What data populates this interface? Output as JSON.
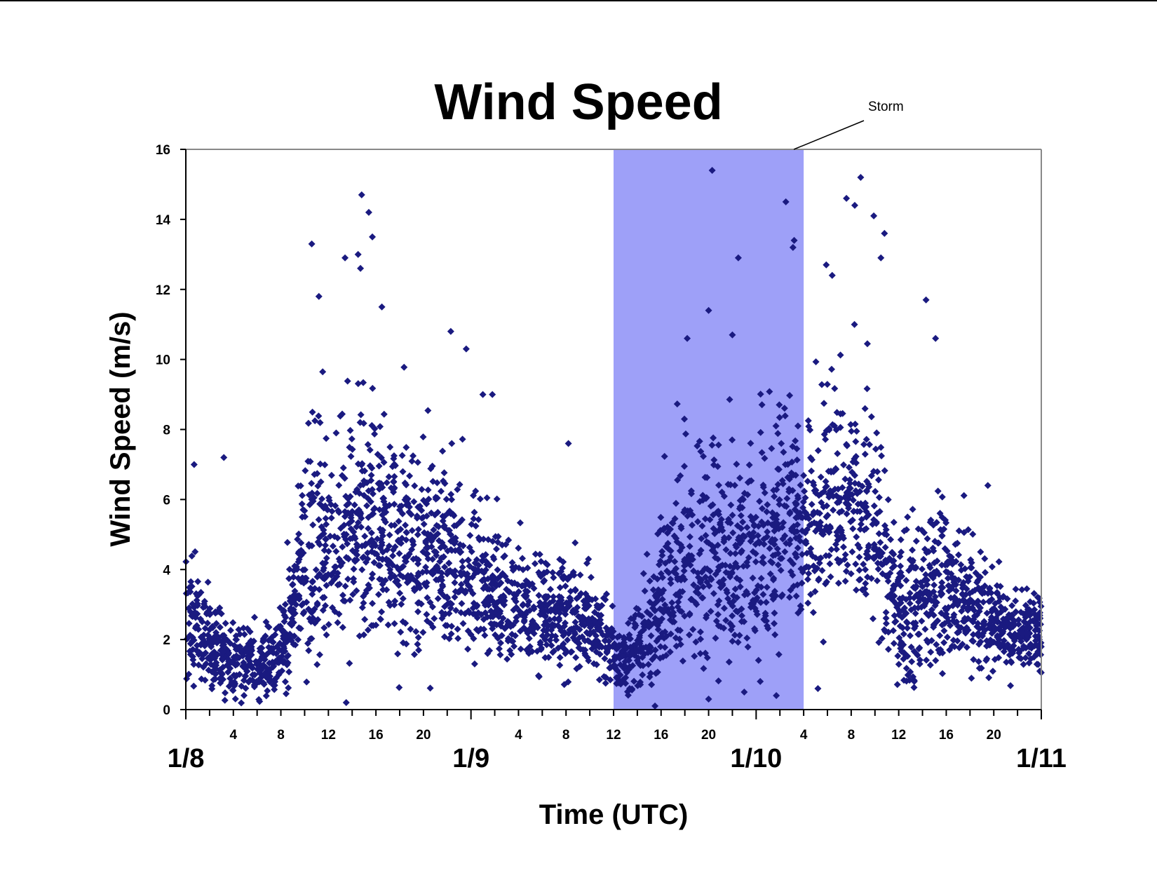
{
  "chart_data": {
    "type": "scatter",
    "title": "Wind Speed",
    "xlabel": "Time (UTC)",
    "ylabel": "Wind Speed (m/s)",
    "x_unit": "hours since 1/8 00 UTC",
    "xlim": [
      0,
      72
    ],
    "ylim": [
      0,
      16
    ],
    "y_ticks": [
      0,
      2,
      4,
      6,
      8,
      10,
      12,
      14,
      16
    ],
    "hour_ticks": [
      {
        "x": 4,
        "label": "4"
      },
      {
        "x": 8,
        "label": "8"
      },
      {
        "x": 12,
        "label": "12"
      },
      {
        "x": 16,
        "label": "16"
      },
      {
        "x": 20,
        "label": "20"
      },
      {
        "x": 28,
        "label": "4"
      },
      {
        "x": 32,
        "label": "8"
      },
      {
        "x": 36,
        "label": "12"
      },
      {
        "x": 40,
        "label": "16"
      },
      {
        "x": 44,
        "label": "20"
      },
      {
        "x": 52,
        "label": "4"
      },
      {
        "x": 56,
        "label": "8"
      },
      {
        "x": 60,
        "label": "12"
      },
      {
        "x": 64,
        "label": "16"
      },
      {
        "x": 68,
        "label": "20"
      }
    ],
    "date_ticks": [
      {
        "x": 0,
        "label": "1/8"
      },
      {
        "x": 24,
        "label": "1/9"
      },
      {
        "x": 48,
        "label": "1/10"
      },
      {
        "x": 72,
        "label": "1/11"
      }
    ],
    "grid": false,
    "marker": "diamond",
    "marker_color": "#1a1a80",
    "highlight": {
      "x_start": 36,
      "x_end": 52,
      "color": "#9ea0f8",
      "label": "Storm"
    },
    "profile_note": "dense 10-second-style samples; mean/spread envelope by hour",
    "profile": [
      {
        "x": 0,
        "mean": 2.6,
        "spread": 1.6
      },
      {
        "x": 2,
        "mean": 1.7,
        "spread": 1.1
      },
      {
        "x": 4,
        "mean": 1.3,
        "spread": 0.8
      },
      {
        "x": 6,
        "mean": 1.2,
        "spread": 0.8
      },
      {
        "x": 8,
        "mean": 1.6,
        "spread": 1.0
      },
      {
        "x": 9,
        "mean": 2.6,
        "spread": 1.4
      },
      {
        "x": 10,
        "mean": 4.2,
        "spread": 2.3
      },
      {
        "x": 12,
        "mean": 4.6,
        "spread": 2.6
      },
      {
        "x": 15,
        "mean": 5.0,
        "spread": 2.9
      },
      {
        "x": 18,
        "mean": 4.8,
        "spread": 2.6
      },
      {
        "x": 21,
        "mean": 4.4,
        "spread": 2.3
      },
      {
        "x": 24,
        "mean": 3.8,
        "spread": 1.7
      },
      {
        "x": 27,
        "mean": 2.9,
        "spread": 1.4
      },
      {
        "x": 30,
        "mean": 2.7,
        "spread": 1.4
      },
      {
        "x": 33,
        "mean": 2.6,
        "spread": 1.3
      },
      {
        "x": 35,
        "mean": 2.2,
        "spread": 1.0
      },
      {
        "x": 37,
        "mean": 1.2,
        "spread": 0.9
      },
      {
        "x": 39,
        "mean": 2.2,
        "spread": 1.3
      },
      {
        "x": 41,
        "mean": 3.8,
        "spread": 2.3
      },
      {
        "x": 44,
        "mean": 4.4,
        "spread": 2.6
      },
      {
        "x": 47,
        "mean": 4.2,
        "spread": 2.6
      },
      {
        "x": 50,
        "mean": 4.9,
        "spread": 2.6
      },
      {
        "x": 53,
        "mean": 5.3,
        "spread": 2.4
      },
      {
        "x": 56,
        "mean": 6.0,
        "spread": 2.6
      },
      {
        "x": 58,
        "mean": 5.3,
        "spread": 2.4
      },
      {
        "x": 60,
        "mean": 2.4,
        "spread": 1.6
      },
      {
        "x": 63,
        "mean": 3.6,
        "spread": 1.9
      },
      {
        "x": 66,
        "mean": 2.9,
        "spread": 1.5
      },
      {
        "x": 69,
        "mean": 2.2,
        "spread": 1.1
      },
      {
        "x": 72,
        "mean": 2.0,
        "spread": 1.0
      }
    ],
    "n_points": 3400,
    "outliers": [
      {
        "x": 10.6,
        "y": 13.3
      },
      {
        "x": 13.4,
        "y": 12.9
      },
      {
        "x": 14.5,
        "y": 13.0
      },
      {
        "x": 14.8,
        "y": 14.7
      },
      {
        "x": 15.4,
        "y": 14.2
      },
      {
        "x": 15.7,
        "y": 13.5
      },
      {
        "x": 14.7,
        "y": 12.6
      },
      {
        "x": 11.2,
        "y": 11.8
      },
      {
        "x": 16.5,
        "y": 11.5
      },
      {
        "x": 22.3,
        "y": 10.8
      },
      {
        "x": 23.6,
        "y": 10.3
      },
      {
        "x": 25.0,
        "y": 9.0
      },
      {
        "x": 25.8,
        "y": 9.0
      },
      {
        "x": 44.3,
        "y": 15.4
      },
      {
        "x": 50.5,
        "y": 14.5
      },
      {
        "x": 51.2,
        "y": 13.4
      },
      {
        "x": 51.1,
        "y": 13.2
      },
      {
        "x": 46.5,
        "y": 12.9
      },
      {
        "x": 44.0,
        "y": 11.4
      },
      {
        "x": 56.8,
        "y": 15.2
      },
      {
        "x": 55.6,
        "y": 14.6
      },
      {
        "x": 57.9,
        "y": 14.1
      },
      {
        "x": 56.3,
        "y": 14.4
      },
      {
        "x": 58.8,
        "y": 13.6
      },
      {
        "x": 58.5,
        "y": 12.9
      },
      {
        "x": 54.4,
        "y": 12.4
      },
      {
        "x": 53.9,
        "y": 12.7
      },
      {
        "x": 62.3,
        "y": 11.7
      },
      {
        "x": 63.1,
        "y": 10.6
      },
      {
        "x": 67.5,
        "y": 6.4
      },
      {
        "x": 32.2,
        "y": 7.6
      },
      {
        "x": 3.2,
        "y": 7.2
      },
      {
        "x": 0.7,
        "y": 7.0
      },
      {
        "x": 49.7,
        "y": 0.4
      },
      {
        "x": 53.2,
        "y": 0.6
      },
      {
        "x": 44.0,
        "y": 0.3
      },
      {
        "x": 47.0,
        "y": 0.5
      },
      {
        "x": 13.5,
        "y": 0.2
      },
      {
        "x": 42.2,
        "y": 10.6
      },
      {
        "x": 46.0,
        "y": 10.7
      }
    ]
  }
}
